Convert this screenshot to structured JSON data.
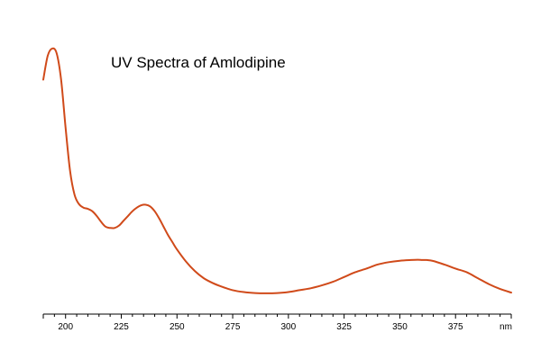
{
  "chart_data": {
    "type": "line",
    "title": "UV Spectra of Amlodipine",
    "xlabel": "",
    "ylabel": "",
    "x_unit_label": "nm",
    "xlim": [
      190,
      400
    ],
    "ylim": [
      0,
      1.2
    ],
    "grid": false,
    "legend": "none",
    "x_ticks": [
      200,
      225,
      250,
      275,
      300,
      325,
      350,
      375
    ],
    "series": [
      {
        "color": "#d04a1a",
        "x": [
          190,
          192,
          194,
          196,
          198,
          200,
          202,
          204,
          206,
          208,
          210,
          212,
          214,
          216,
          218,
          220,
          222,
          224,
          226,
          228,
          230,
          232,
          234,
          236,
          238,
          240,
          242,
          244,
          246,
          248,
          250,
          254,
          258,
          262,
          266,
          270,
          275,
          280,
          285,
          290,
          295,
          300,
          305,
          310,
          315,
          320,
          325,
          330,
          335,
          340,
          345,
          350,
          355,
          358,
          360,
          362,
          365,
          370,
          375,
          380,
          385,
          390,
          395,
          400
        ],
        "y": [
          0.98,
          1.08,
          1.11,
          1.09,
          0.98,
          0.78,
          0.6,
          0.5,
          0.46,
          0.445,
          0.44,
          0.43,
          0.41,
          0.385,
          0.365,
          0.36,
          0.36,
          0.37,
          0.39,
          0.41,
          0.43,
          0.445,
          0.455,
          0.457,
          0.45,
          0.43,
          0.4,
          0.365,
          0.33,
          0.3,
          0.27,
          0.22,
          0.18,
          0.15,
          0.13,
          0.115,
          0.1,
          0.092,
          0.088,
          0.087,
          0.088,
          0.092,
          0.1,
          0.108,
          0.12,
          0.135,
          0.155,
          0.175,
          0.19,
          0.207,
          0.217,
          0.223,
          0.226,
          0.227,
          0.226,
          0.226,
          0.222,
          0.207,
          0.19,
          0.175,
          0.15,
          0.125,
          0.105,
          0.09
        ]
      }
    ]
  }
}
